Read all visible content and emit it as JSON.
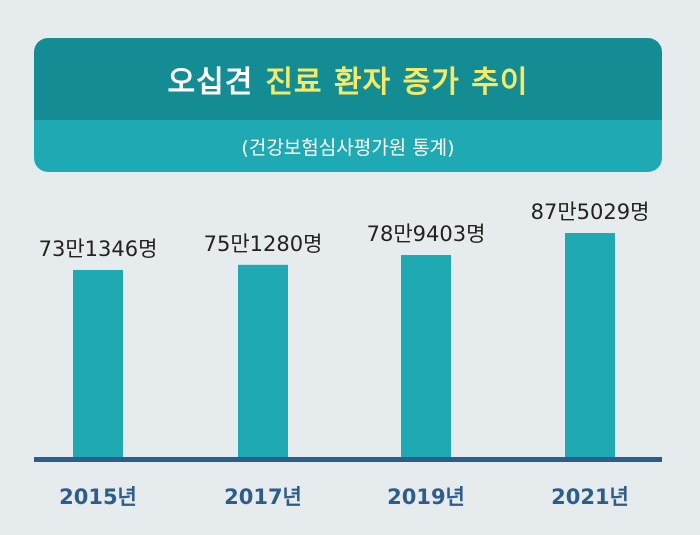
{
  "header": {
    "title_prefix": "오십견",
    "title_highlight": "진료 환자 증가 추이",
    "subtitle": "(건강보험심사평가원 통계)"
  },
  "colors": {
    "header_dark": "#138c93",
    "header_light": "#1fa9b3",
    "highlight": "#f3ea6a",
    "bar": "#1fa9b3",
    "axis": "#2d5d8a",
    "background": "#e6ebee"
  },
  "chart_data": {
    "type": "bar",
    "title": "오십견 진료 환자 증가 추이",
    "subtitle": "(건강보험심사평가원 통계)",
    "xlabel": "",
    "ylabel": "",
    "categories": [
      "2015년",
      "2017년",
      "2019년",
      "2021년"
    ],
    "values": [
      731346,
      751280,
      789403,
      875029
    ],
    "value_labels": [
      "73만1346명",
      "75만1280명",
      "78만9403명",
      "87만5029명"
    ],
    "ylim": [
      0,
      1000000
    ],
    "grid": false,
    "legend": "none"
  }
}
